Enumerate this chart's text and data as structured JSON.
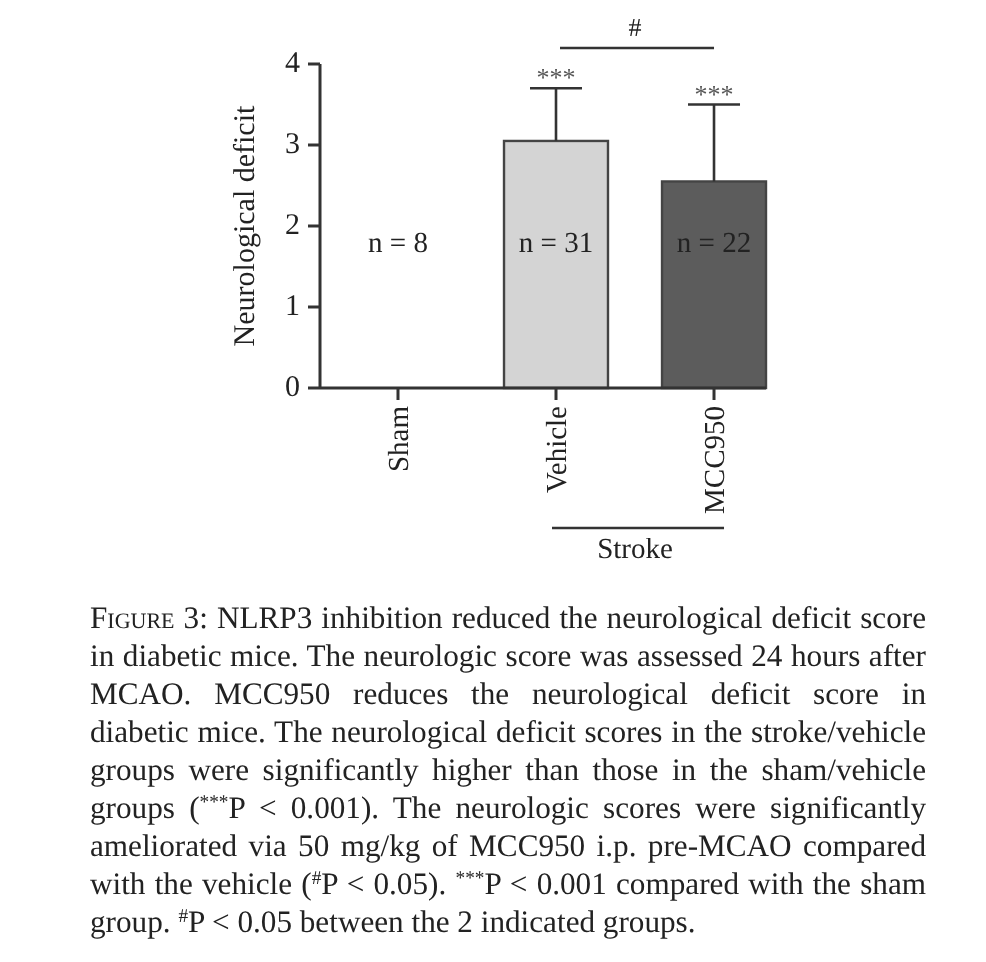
{
  "chart_data": {
    "type": "bar",
    "categories": [
      "Sham",
      "Vehicle",
      "MCC950"
    ],
    "values": [
      0,
      3.05,
      2.55
    ],
    "colors": [
      "#ffffff",
      "#d4d4d4",
      "#5c5c5c"
    ],
    "errors": [
      null,
      0.65,
      0.95
    ],
    "ylabel": "Neurological deficit",
    "ylim": [
      0,
      4
    ],
    "yticks": [
      0,
      1,
      2,
      3,
      4
    ],
    "annotations": [
      {
        "text": "***",
        "x": "Vehicle",
        "y": 3.7
      },
      {
        "text": "***",
        "x": "MCC950",
        "y": 3.5
      },
      "n = 8",
      "n = 31",
      "n = 22",
      "#",
      "Stroke",
      "Figure 3: NLRP3 inhibition reduced the neurological deficit score in diabetic mice. The neurologic score was assessed 24 hours after MCAO. MCC950 reduces the neurological deficit score in diabetic mice. The neurological deficit scores in the stroke/vehicle groups were significantly higher than those in the sham/vehicle groups ($^{***}$P < 0.001). The neurologic scores were significantly ameliorated via 50 mg/kg of MCC950 i.p. pre-MCAO compared with the vehicle ($^{#}$P < 0.05). $^{***}$P < 0.001 compared with the sham group. $^{#}$P < 0.05 between the 2 indicated groups."
    ]
  }
}
